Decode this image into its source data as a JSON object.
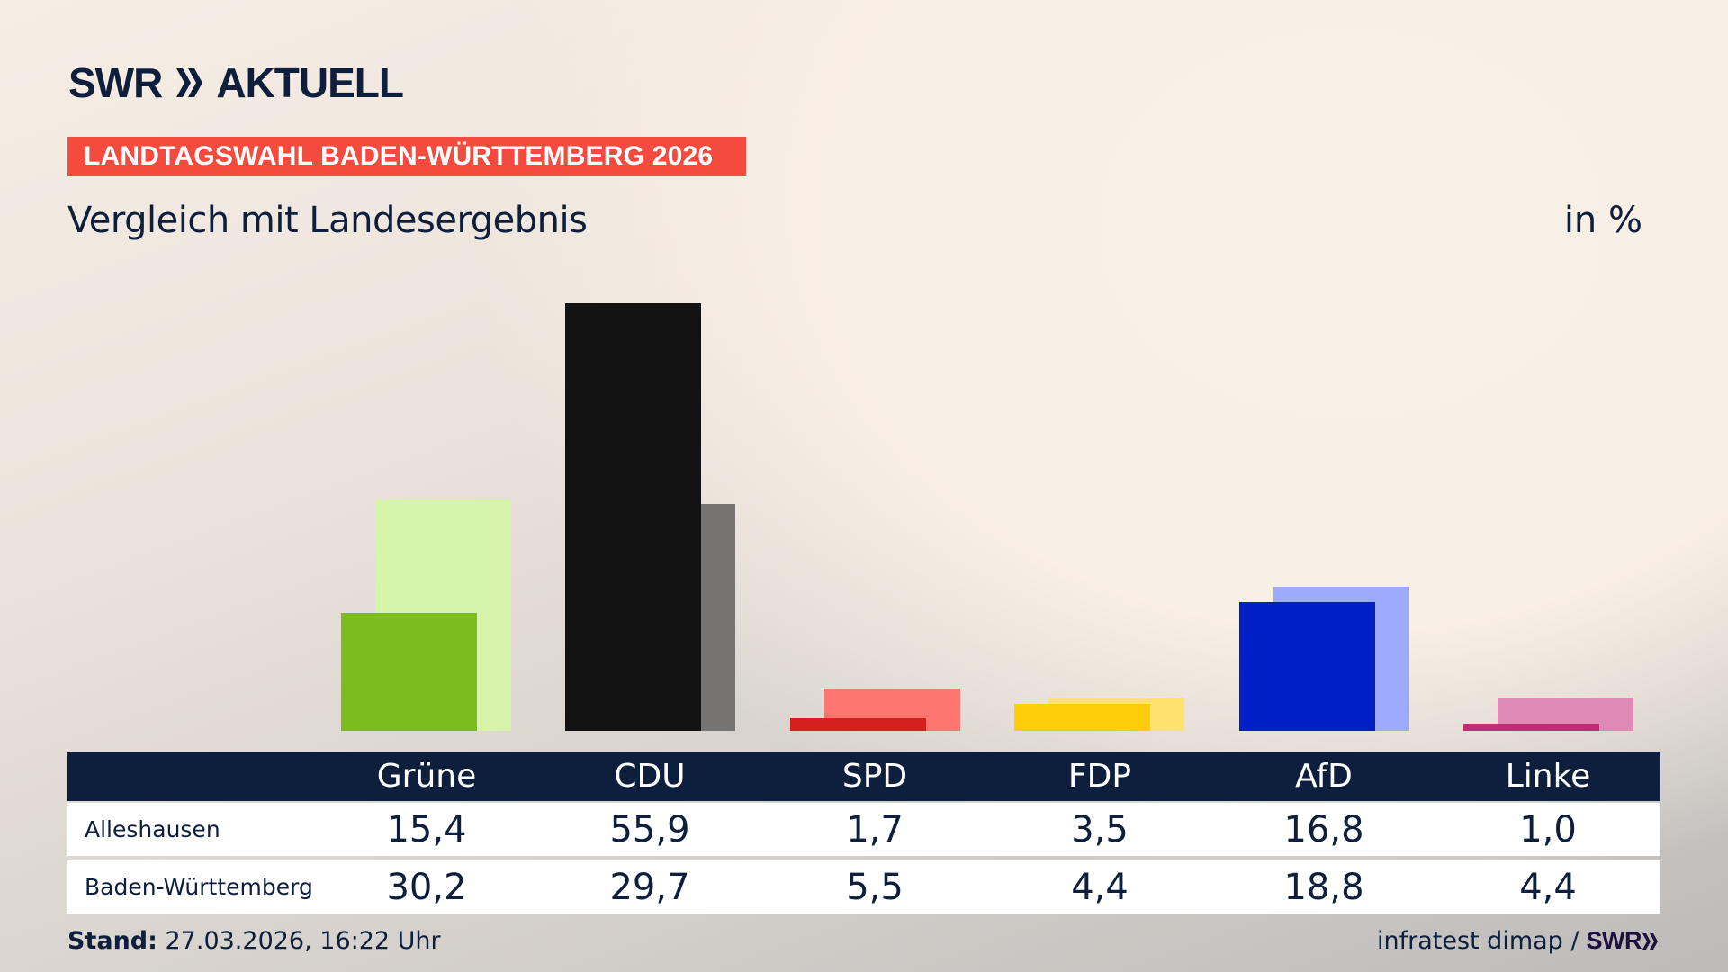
{
  "header": {
    "logo_text": "SWR",
    "logo_suffix": "AKTUELL",
    "banner": "LANDTAGSWAHL BADEN-WÜRTTEMBERG 2026",
    "subtitle": "Vergleich mit Landesergebnis",
    "unit": "in %"
  },
  "colors": {
    "banner": "#f54b3e",
    "navy": "#0d1f3c",
    "parties": {
      "Grüne": {
        "main": "#7abd1c",
        "light": "#d6f5aa"
      },
      "CDU": {
        "main": "#121212",
        "light": "#767472"
      },
      "SPD": {
        "main": "#d6201c",
        "light": "#ff7570"
      },
      "FDP": {
        "main": "#ffcd0a",
        "light": "#ffe170"
      },
      "AfD": {
        "main": "#0020c7",
        "light": "#9dabff"
      },
      "Linke": {
        "main": "#be2d76",
        "light": "#df8ab6"
      }
    }
  },
  "table": {
    "headers": [
      "Grüne",
      "CDU",
      "SPD",
      "FDP",
      "AfD",
      "Linke"
    ],
    "rows": [
      {
        "label": "Alleshausen",
        "values": [
          "15,4",
          "55,9",
          "1,7",
          "3,5",
          "16,8",
          "1,0"
        ]
      },
      {
        "label": "Baden-Württemberg",
        "values": [
          "30,2",
          "29,7",
          "5,5",
          "4,4",
          "18,8",
          "4,4"
        ]
      }
    ]
  },
  "footer": {
    "stand_label": "Stand:",
    "stand_value": "27.03.2026, 16:22 Uhr",
    "source": "infratest dimap /",
    "source_logo": "SWR"
  },
  "chart_data": {
    "type": "bar",
    "title": "Landtagswahl Baden-Württemberg 2026 – Vergleich mit Landesergebnis",
    "ylabel": "in %",
    "xlabel": "",
    "categories": [
      "Grüne",
      "CDU",
      "SPD",
      "FDP",
      "AfD",
      "Linke"
    ],
    "series": [
      {
        "name": "Alleshausen",
        "values": [
          15.4,
          55.9,
          1.7,
          3.5,
          16.8,
          1.0
        ]
      },
      {
        "name": "Baden-Württemberg",
        "values": [
          30.2,
          29.7,
          5.5,
          4.4,
          18.8,
          4.4
        ]
      }
    ],
    "ylim": [
      0,
      60
    ],
    "grid": false,
    "legend": "table below chart"
  }
}
